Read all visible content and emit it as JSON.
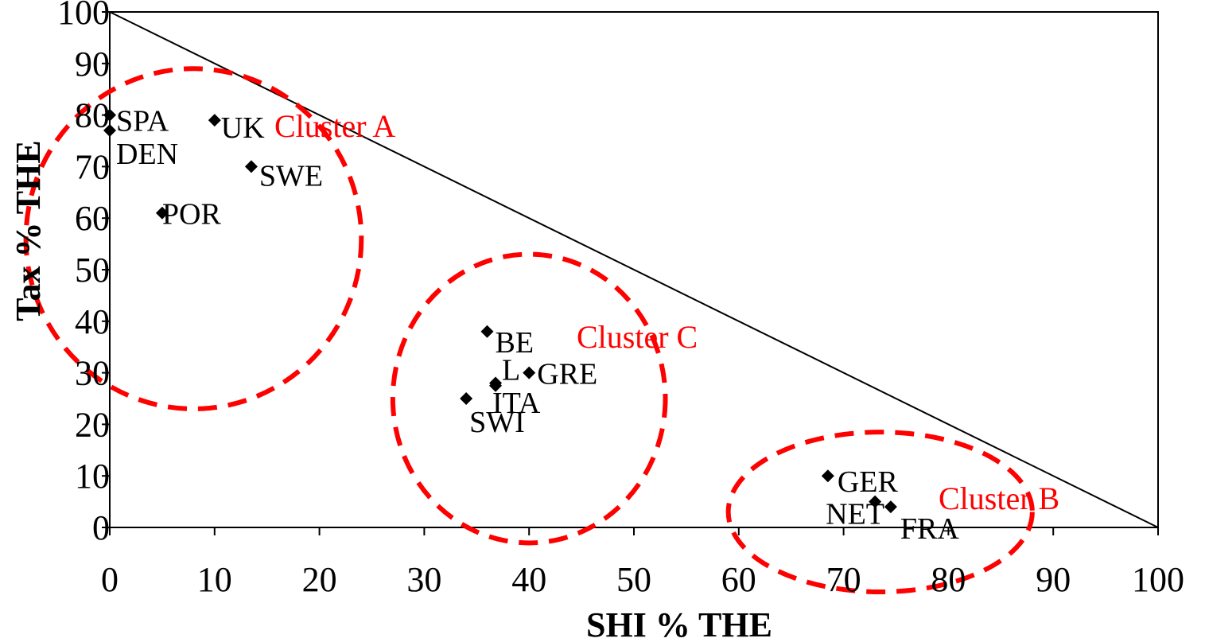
{
  "chart_data": {
    "type": "scatter",
    "xlabel": "SHI % THE",
    "ylabel": "Tax % THE",
    "xlim": [
      0,
      100
    ],
    "ylim": [
      0,
      100
    ],
    "x_ticks": [
      "0",
      "10",
      "20",
      "30",
      "40",
      "50",
      "60",
      "70",
      "80",
      "90",
      "100"
    ],
    "y_ticks": [
      "0",
      "10",
      "20",
      "30",
      "40",
      "50",
      "60",
      "70",
      "80",
      "90",
      "100"
    ],
    "grid": false,
    "reference_line": {
      "from": [
        0,
        100
      ],
      "to": [
        100,
        0
      ]
    },
    "points": [
      {
        "label": "SPA",
        "x": 0,
        "y": 80
      },
      {
        "label": "DEN",
        "x": 0,
        "y": 77
      },
      {
        "label": "UK",
        "x": 10,
        "y": 79
      },
      {
        "label": "SWE",
        "x": 13.5,
        "y": 70
      },
      {
        "label": "POR",
        "x": 5,
        "y": 61
      },
      {
        "label": "BE",
        "x": 36,
        "y": 38
      },
      {
        "label": "L",
        "x": 36.8,
        "y": 28
      },
      {
        "label": "ITA",
        "x": 36.8,
        "y": 27.5
      },
      {
        "label": "GRE",
        "x": 40,
        "y": 30
      },
      {
        "label": "SWI",
        "x": 34,
        "y": 25
      },
      {
        "label": "GER",
        "x": 68.5,
        "y": 10
      },
      {
        "label": "NET",
        "x": 73,
        "y": 5
      },
      {
        "label": "FRA",
        "x": 74.5,
        "y": 4
      }
    ],
    "clusters": [
      {
        "label": "Cluster A",
        "center": [
          8,
          56
        ],
        "radii": [
          16,
          33
        ]
      },
      {
        "label": "Cluster C",
        "center": [
          40,
          25
        ],
        "radii": [
          13,
          28
        ]
      },
      {
        "label": "Cluster B",
        "center": [
          73.5,
          3
        ],
        "radii": [
          14.5,
          15.5
        ]
      }
    ],
    "colors": {
      "points": "#000000",
      "clusters": "#ff0000",
      "line": "#000000"
    }
  }
}
